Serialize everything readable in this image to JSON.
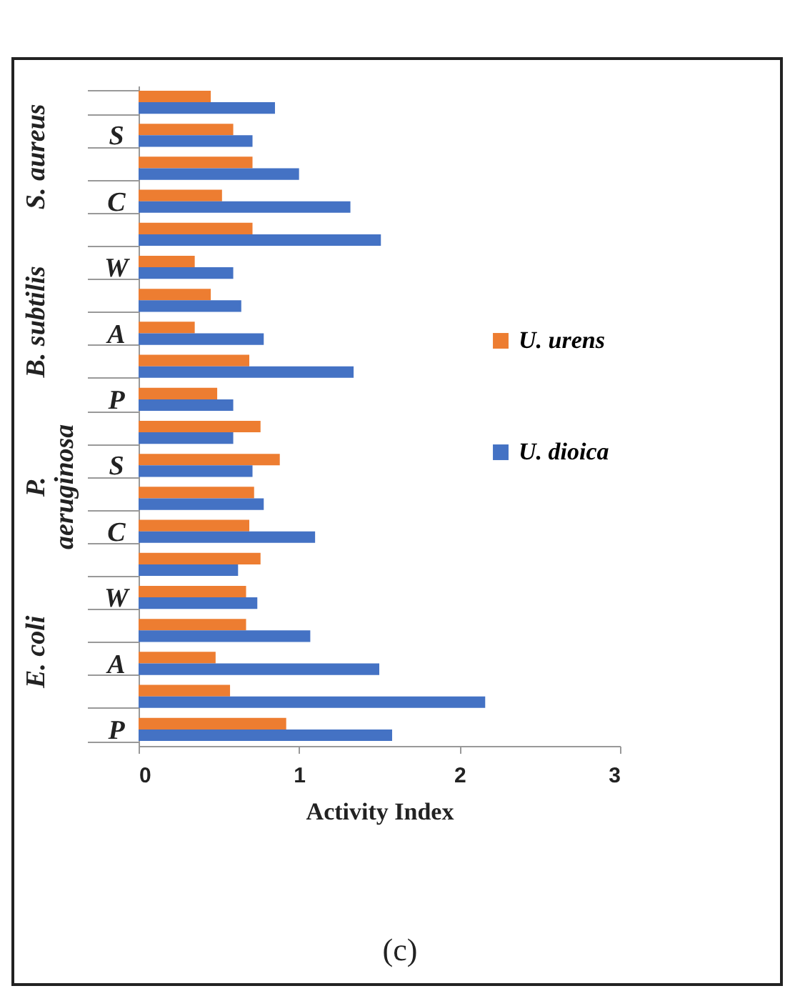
{
  "chart_data": {
    "type": "bar",
    "orientation": "horizontal",
    "xlabel": "Activity Index",
    "categories": [
      null,
      "S",
      null,
      "C",
      null,
      "W",
      null,
      "A",
      null,
      "P",
      null,
      "S",
      null,
      "C",
      null,
      "W",
      null,
      "A",
      null,
      "P"
    ],
    "series": [
      {
        "name": "U. urens",
        "color": "#ed7d31",
        "values": [
          0.45,
          0.59,
          0.71,
          0.52,
          0.71,
          0.35,
          0.45,
          0.35,
          0.69,
          0.49,
          0.76,
          0.88,
          0.72,
          0.69,
          0.76,
          0.67,
          0.67,
          0.48,
          0.57,
          0.92
        ]
      },
      {
        "name": "U. dioica",
        "color": "#4472c4",
        "values": [
          0.85,
          0.71,
          1.0,
          1.32,
          1.51,
          0.59,
          0.64,
          0.78,
          1.34,
          0.59,
          0.59,
          0.71,
          0.78,
          1.1,
          0.62,
          0.74,
          1.07,
          1.5,
          2.16,
          1.58
        ]
      }
    ],
    "xlim": [
      0,
      3
    ],
    "xticks": [
      0,
      1,
      2,
      3
    ],
    "legend": "right",
    "annotations": [
      "S. aureus",
      "B. subtilis",
      "P. aeruginosa",
      "E. coli",
      "(c)"
    ]
  }
}
